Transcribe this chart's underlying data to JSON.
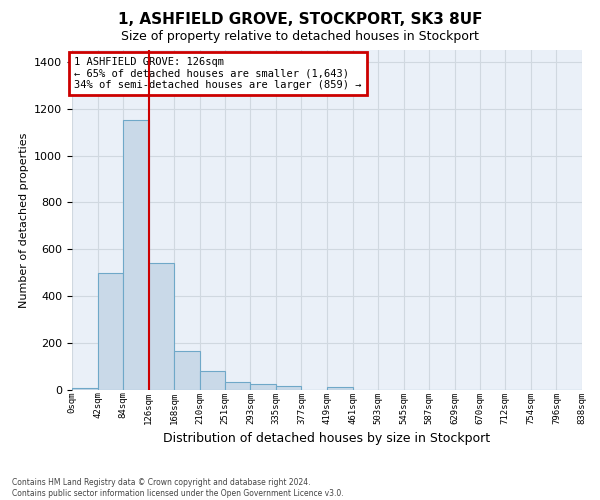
{
  "title": "1, ASHFIELD GROVE, STOCKPORT, SK3 8UF",
  "subtitle": "Size of property relative to detached houses in Stockport",
  "xlabel": "Distribution of detached houses by size in Stockport",
  "ylabel": "Number of detached properties",
  "bin_edges": [
    0,
    42,
    84,
    126,
    168,
    210,
    251,
    293,
    335,
    377,
    419,
    461,
    503,
    545,
    587,
    629,
    670,
    712,
    754,
    796,
    838
  ],
  "bar_heights": [
    10,
    500,
    1150,
    540,
    165,
    80,
    32,
    27,
    17,
    0,
    14,
    0,
    0,
    0,
    0,
    0,
    0,
    0,
    0,
    0
  ],
  "bar_color": "#c9d9e8",
  "bar_edge_color": "#6fa8c8",
  "vline_x": 126,
  "vline_color": "#cc0000",
  "ylim": [
    0,
    1450
  ],
  "yticks": [
    0,
    200,
    400,
    600,
    800,
    1000,
    1200,
    1400
  ],
  "annotation_title": "1 ASHFIELD GROVE: 126sqm",
  "annotation_line1": "← 65% of detached houses are smaller (1,643)",
  "annotation_line2": "34% of semi-detached houses are larger (859) →",
  "annotation_box_color": "#cc0000",
  "footer_line1": "Contains HM Land Registry data © Crown copyright and database right 2024.",
  "footer_line2": "Contains public sector information licensed under the Open Government Licence v3.0.",
  "tick_labels": [
    "0sqm",
    "42sqm",
    "84sqm",
    "126sqm",
    "168sqm",
    "210sqm",
    "251sqm",
    "293sqm",
    "335sqm",
    "377sqm",
    "419sqm",
    "461sqm",
    "503sqm",
    "545sqm",
    "587sqm",
    "629sqm",
    "670sqm",
    "712sqm",
    "754sqm",
    "796sqm",
    "838sqm"
  ],
  "grid_color": "#d0d8e0",
  "background_color": "#eaf0f8",
  "title_fontsize": 11,
  "subtitle_fontsize": 9
}
